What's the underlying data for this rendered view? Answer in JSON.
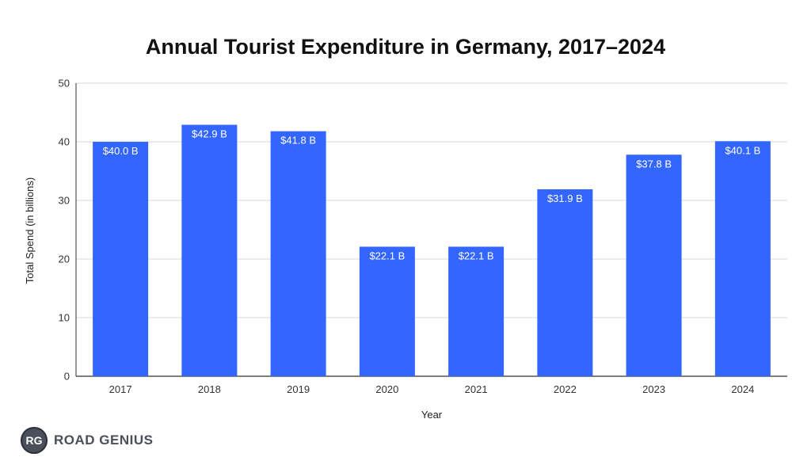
{
  "chart_data": {
    "type": "bar",
    "title": "Annual Tourist Expenditure in Germany, 2017–2024",
    "xlabel": "Year",
    "ylabel": "Total Spend (in billions)",
    "ylim": [
      0,
      50
    ],
    "yticks": [
      0,
      10,
      20,
      30,
      40,
      50
    ],
    "grid": true,
    "categories": [
      "2017",
      "2018",
      "2019",
      "2020",
      "2021",
      "2022",
      "2023",
      "2024"
    ],
    "values": [
      40.0,
      42.9,
      41.8,
      22.1,
      22.1,
      31.9,
      37.8,
      40.1
    ],
    "data_labels": [
      "$40.0 B",
      "$42.9 B",
      "$41.8 B",
      "$22.1 B",
      "$22.1 B",
      "$31.9 B",
      "$37.8 B",
      "$40.1 B"
    ],
    "bar_color": "#3366ff",
    "grid_color": "#d9d9d9",
    "axis_color": "#333333"
  },
  "logo": {
    "badge": "RG",
    "text": "ROAD GENIUS"
  }
}
